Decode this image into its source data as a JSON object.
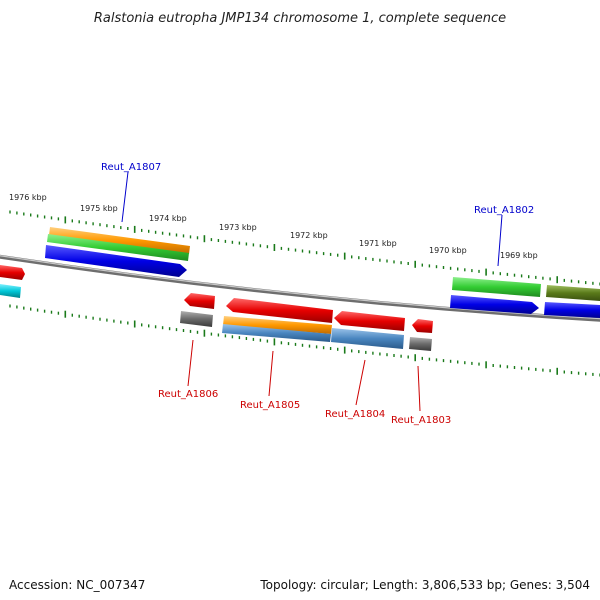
{
  "title": "Ralstonia eutropha JMP134 chromosome 1, complete sequence",
  "accession": "Accession: NC_007347",
  "summary": "Topology: circular; Length: 3,806,533 bp; Genes: 3,504",
  "kbp_labels": [
    "1976 kbp",
    "1975 kbp",
    "1974 kbp",
    "1973 kbp",
    "1972 kbp",
    "1971 kbp",
    "1970 kbp",
    "1969 kbp"
  ],
  "gene_labels": [
    {
      "name": "Reut_A1807",
      "strand": "forward",
      "color": "#0000cc"
    },
    {
      "name": "Reut_A1802",
      "strand": "forward",
      "color": "#0000cc"
    },
    {
      "name": "Reut_A1806",
      "strand": "reverse",
      "color": "#cc0000"
    },
    {
      "name": "Reut_A1805",
      "strand": "reverse",
      "color": "#cc0000"
    },
    {
      "name": "Reut_A1804",
      "strand": "reverse",
      "color": "#cc0000"
    },
    {
      "name": "Reut_A1803",
      "strand": "reverse",
      "color": "#cc0000"
    }
  ],
  "colors": {
    "backbone": "#8c8c8c",
    "tick": "#1a7a1a",
    "red": "#e60000",
    "blue": "#0000e6",
    "green": "#33cc33",
    "orange": "#ff9900",
    "steel": "#4a86c0",
    "gray": "#6a6a6a",
    "cyan": "#00c8d8",
    "olive": "#5a7a1a"
  }
}
